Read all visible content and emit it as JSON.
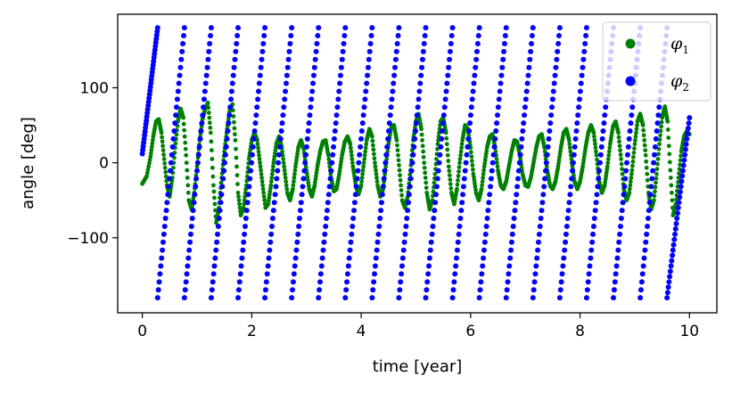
{
  "chart_data": {
    "type": "scatter",
    "xlabel": "time [year]",
    "ylabel": "angle [deg]",
    "xlim": [
      -0.45,
      10.5
    ],
    "ylim": [
      -200,
      198
    ],
    "x_ticks": [
      0,
      2,
      4,
      6,
      8,
      10
    ],
    "x_tick_labels": [
      "0",
      "2",
      "4",
      "6",
      "8",
      "10"
    ],
    "y_ticks": [
      -100,
      0,
      100
    ],
    "y_tick_labels": [
      "−100",
      "0",
      "100"
    ],
    "grid": false,
    "legend_position": "top-right",
    "series": [
      {
        "name": "φ1",
        "legend_symbol": "φ",
        "legend_sub": "1",
        "color": "#008000",
        "points": [
          [
            0.0,
            -28
          ],
          [
            0.08,
            -18
          ],
          [
            0.15,
            8
          ],
          [
            0.2,
            35
          ],
          [
            0.25,
            55
          ],
          [
            0.3,
            58
          ],
          [
            0.35,
            40
          ],
          [
            0.4,
            5
          ],
          [
            0.45,
            -30
          ],
          [
            0.5,
            -45
          ],
          [
            0.55,
            -20
          ],
          [
            0.6,
            20
          ],
          [
            0.65,
            55
          ],
          [
            0.7,
            72
          ],
          [
            0.75,
            60
          ],
          [
            0.8,
            10
          ],
          [
            0.85,
            -50
          ],
          [
            0.9,
            -62
          ],
          [
            0.95,
            -40
          ],
          [
            1.0,
            -5
          ],
          [
            1.05,
            30
          ],
          [
            1.1,
            58
          ],
          [
            1.15,
            72
          ],
          [
            1.2,
            80
          ],
          [
            1.25,
            40
          ],
          [
            1.3,
            -30
          ],
          [
            1.35,
            -80
          ],
          [
            1.4,
            -60
          ],
          [
            1.45,
            -20
          ],
          [
            1.5,
            15
          ],
          [
            1.55,
            45
          ],
          [
            1.6,
            72
          ],
          [
            1.65,
            78
          ],
          [
            1.7,
            30
          ],
          [
            1.75,
            -40
          ],
          [
            1.8,
            -70
          ],
          [
            1.85,
            -60
          ],
          [
            1.9,
            -30
          ],
          [
            1.95,
            5
          ],
          [
            2.0,
            30
          ],
          [
            2.05,
            40
          ],
          [
            2.1,
            30
          ],
          [
            2.15,
            0
          ],
          [
            2.2,
            -30
          ],
          [
            2.25,
            -60
          ],
          [
            2.3,
            -55
          ],
          [
            2.35,
            -30
          ],
          [
            2.4,
            0
          ],
          [
            2.45,
            25
          ],
          [
            2.5,
            35
          ],
          [
            2.55,
            20
          ],
          [
            2.6,
            -10
          ],
          [
            2.65,
            -40
          ],
          [
            2.7,
            -50
          ],
          [
            2.75,
            -35
          ],
          [
            2.8,
            -5
          ],
          [
            2.85,
            20
          ],
          [
            2.9,
            30
          ],
          [
            2.95,
            18
          ],
          [
            3.0,
            -10
          ],
          [
            3.05,
            -35
          ],
          [
            3.1,
            -45
          ],
          [
            3.15,
            -30
          ],
          [
            3.2,
            -5
          ],
          [
            3.25,
            15
          ],
          [
            3.3,
            28
          ],
          [
            3.35,
            30
          ],
          [
            3.4,
            10
          ],
          [
            3.45,
            -20
          ],
          [
            3.5,
            -38
          ],
          [
            3.55,
            -35
          ],
          [
            3.6,
            -15
          ],
          [
            3.65,
            10
          ],
          [
            3.7,
            28
          ],
          [
            3.75,
            35
          ],
          [
            3.8,
            25
          ],
          [
            3.85,
            -5
          ],
          [
            3.9,
            -30
          ],
          [
            3.95,
            -42
          ],
          [
            4.0,
            -30
          ],
          [
            4.05,
            0
          ],
          [
            4.1,
            30
          ],
          [
            4.15,
            45
          ],
          [
            4.2,
            35
          ],
          [
            4.25,
            0
          ],
          [
            4.3,
            -30
          ],
          [
            4.35,
            -45
          ],
          [
            4.4,
            -35
          ],
          [
            4.45,
            -5
          ],
          [
            4.5,
            25
          ],
          [
            4.55,
            48
          ],
          [
            4.6,
            50
          ],
          [
            4.65,
            30
          ],
          [
            4.7,
            -10
          ],
          [
            4.75,
            -50
          ],
          [
            4.8,
            -60
          ],
          [
            4.85,
            -45
          ],
          [
            4.9,
            -10
          ],
          [
            4.95,
            30
          ],
          [
            5.0,
            55
          ],
          [
            5.05,
            65
          ],
          [
            5.1,
            45
          ],
          [
            5.15,
            0
          ],
          [
            5.2,
            -40
          ],
          [
            5.25,
            -62
          ],
          [
            5.3,
            -50
          ],
          [
            5.35,
            -15
          ],
          [
            5.4,
            25
          ],
          [
            5.45,
            55
          ],
          [
            5.5,
            60
          ],
          [
            5.55,
            40
          ],
          [
            5.6,
            -5
          ],
          [
            5.65,
            -40
          ],
          [
            5.7,
            -55
          ],
          [
            5.75,
            -35
          ],
          [
            5.8,
            0
          ],
          [
            5.85,
            30
          ],
          [
            5.9,
            50
          ],
          [
            5.95,
            45
          ],
          [
            6.0,
            20
          ],
          [
            6.05,
            -15
          ],
          [
            6.1,
            -40
          ],
          [
            6.15,
            -50
          ],
          [
            6.2,
            -35
          ],
          [
            6.25,
            -5
          ],
          [
            6.3,
            20
          ],
          [
            6.35,
            35
          ],
          [
            6.4,
            38
          ],
          [
            6.45,
            20
          ],
          [
            6.5,
            -10
          ],
          [
            6.55,
            -30
          ],
          [
            6.6,
            -35
          ],
          [
            6.65,
            -25
          ],
          [
            6.7,
            -5
          ],
          [
            6.75,
            15
          ],
          [
            6.8,
            30
          ],
          [
            6.85,
            28
          ],
          [
            6.9,
            10
          ],
          [
            6.95,
            -15
          ],
          [
            7.0,
            -30
          ],
          [
            7.05,
            -32
          ],
          [
            7.1,
            -20
          ],
          [
            7.15,
            0
          ],
          [
            7.2,
            20
          ],
          [
            7.25,
            35
          ],
          [
            7.3,
            38
          ],
          [
            7.35,
            20
          ],
          [
            7.4,
            -10
          ],
          [
            7.45,
            -30
          ],
          [
            7.5,
            -35
          ],
          [
            7.55,
            -25
          ],
          [
            7.6,
            -5
          ],
          [
            7.65,
            20
          ],
          [
            7.7,
            40
          ],
          [
            7.75,
            45
          ],
          [
            7.8,
            30
          ],
          [
            7.85,
            0
          ],
          [
            7.9,
            -25
          ],
          [
            7.95,
            -35
          ],
          [
            8.0,
            -25
          ],
          [
            8.05,
            -5
          ],
          [
            8.1,
            20
          ],
          [
            8.15,
            40
          ],
          [
            8.2,
            50
          ],
          [
            8.25,
            40
          ],
          [
            8.3,
            10
          ],
          [
            8.35,
            -25
          ],
          [
            8.4,
            -40
          ],
          [
            8.45,
            -30
          ],
          [
            8.5,
            -5
          ],
          [
            8.55,
            25
          ],
          [
            8.6,
            48
          ],
          [
            8.65,
            55
          ],
          [
            8.7,
            40
          ],
          [
            8.75,
            5
          ],
          [
            8.8,
            -35
          ],
          [
            8.85,
            -50
          ],
          [
            8.9,
            -40
          ],
          [
            8.95,
            -10
          ],
          [
            9.0,
            25
          ],
          [
            9.05,
            55
          ],
          [
            9.1,
            65
          ],
          [
            9.15,
            50
          ],
          [
            9.2,
            10
          ],
          [
            9.25,
            -40
          ],
          [
            9.3,
            -62
          ],
          [
            9.35,
            -50
          ],
          [
            9.4,
            -15
          ],
          [
            9.45,
            25
          ],
          [
            9.5,
            60
          ],
          [
            9.55,
            75
          ],
          [
            9.6,
            55
          ],
          [
            9.65,
            -10
          ],
          [
            9.7,
            -70
          ],
          [
            9.75,
            -55
          ],
          [
            9.8,
            -20
          ],
          [
            9.85,
            15
          ],
          [
            9.9,
            35
          ],
          [
            9.95,
            42
          ],
          [
            10.0,
            38
          ]
        ]
      },
      {
        "name": "φ2",
        "legend_symbol": "φ",
        "legend_sub": "2",
        "color": "#0000ff",
        "wrap_starts": [
          0.0,
          0.28,
          0.77,
          1.26,
          1.75,
          2.24,
          2.73,
          3.22,
          3.71,
          4.2,
          4.69,
          5.18,
          5.67,
          6.16,
          6.65,
          7.14,
          7.63,
          8.12,
          8.61,
          9.1,
          9.59
        ],
        "period": 0.49,
        "x_end": 10.0,
        "first_segment": {
          "x0": 0.0,
          "y0": 12,
          "x1": 0.28,
          "y1": 180
        },
        "last_segment": {
          "x0": 9.59,
          "y0": -180,
          "x1": 10.0,
          "y1": 60
        }
      }
    ]
  }
}
